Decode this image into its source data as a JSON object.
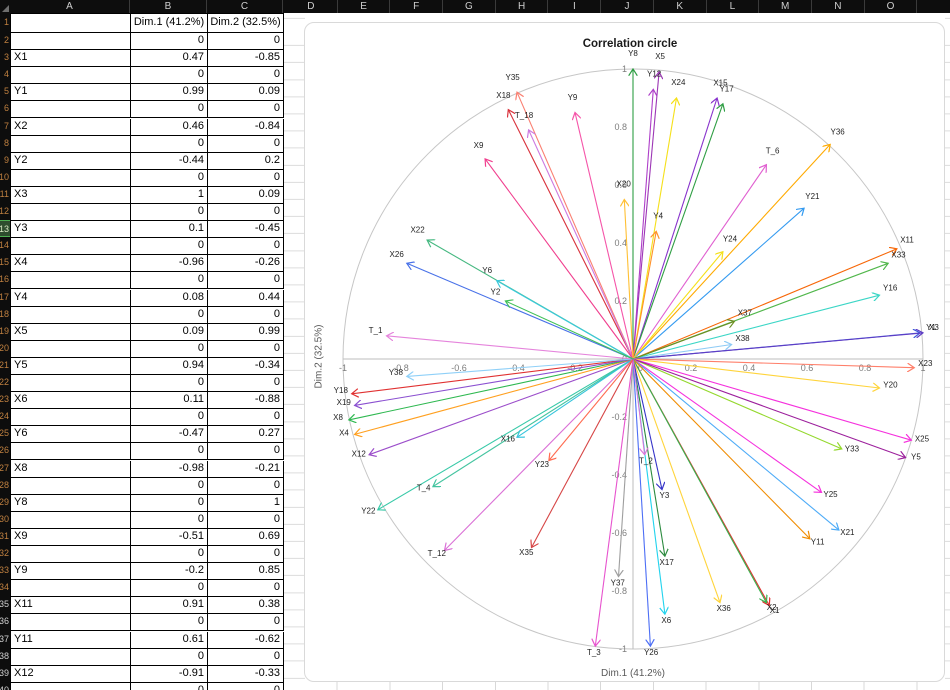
{
  "sheet": {
    "columns": [
      "A",
      "B",
      "C",
      "D",
      "E",
      "F",
      "G",
      "H",
      "I",
      "J",
      "K",
      "L",
      "M",
      "N",
      "O"
    ],
    "selected_row": 13,
    "rows": [
      {
        "n": "1",
        "a": "",
        "b": "Dim.1 (41.2%)",
        "c": "Dim.2 (32.5%)"
      },
      {
        "n": "2",
        "a": "",
        "b": "0",
        "c": "0"
      },
      {
        "n": "3",
        "a": "X1",
        "b": "0.47",
        "c": "-0.85"
      },
      {
        "n": "4",
        "a": "",
        "b": "0",
        "c": "0"
      },
      {
        "n": "5",
        "a": "Y1",
        "b": "0.99",
        "c": "0.09"
      },
      {
        "n": "6",
        "a": "",
        "b": "0",
        "c": "0"
      },
      {
        "n": "7",
        "a": "X2",
        "b": "0.46",
        "c": "-0.84"
      },
      {
        "n": "8",
        "a": "",
        "b": "0",
        "c": "0"
      },
      {
        "n": "9",
        "a": "Y2",
        "b": "-0.44",
        "c": "0.2"
      },
      {
        "n": "10",
        "a": "",
        "b": "0",
        "c": "0"
      },
      {
        "n": "11",
        "a": "X3",
        "b": "1",
        "c": "0.09"
      },
      {
        "n": "12",
        "a": "",
        "b": "0",
        "c": "0"
      },
      {
        "n": "13",
        "a": "Y3",
        "b": "0.1",
        "c": "-0.45"
      },
      {
        "n": "14",
        "a": "",
        "b": "0",
        "c": "0"
      },
      {
        "n": "15",
        "a": "X4",
        "b": "-0.96",
        "c": "-0.26"
      },
      {
        "n": "16",
        "a": "",
        "b": "0",
        "c": "0"
      },
      {
        "n": "17",
        "a": "Y4",
        "b": "0.08",
        "c": "0.44"
      },
      {
        "n": "18",
        "a": "",
        "b": "0",
        "c": "0"
      },
      {
        "n": "19",
        "a": "X5",
        "b": "0.09",
        "c": "0.99"
      },
      {
        "n": "20",
        "a": "",
        "b": "0",
        "c": "0"
      },
      {
        "n": "21",
        "a": "Y5",
        "b": "0.94",
        "c": "-0.34"
      },
      {
        "n": "22",
        "a": "",
        "b": "0",
        "c": "0"
      },
      {
        "n": "23",
        "a": "X6",
        "b": "0.11",
        "c": "-0.88"
      },
      {
        "n": "24",
        "a": "",
        "b": "0",
        "c": "0"
      },
      {
        "n": "25",
        "a": "Y6",
        "b": "-0.47",
        "c": "0.27"
      },
      {
        "n": "26",
        "a": "",
        "b": "0",
        "c": "0"
      },
      {
        "n": "27",
        "a": "X8",
        "b": "-0.98",
        "c": "-0.21"
      },
      {
        "n": "28",
        "a": "",
        "b": "0",
        "c": "0"
      },
      {
        "n": "29",
        "a": "Y8",
        "b": "0",
        "c": "1"
      },
      {
        "n": "30",
        "a": "",
        "b": "0",
        "c": "0"
      },
      {
        "n": "31",
        "a": "X9",
        "b": "-0.51",
        "c": "0.69"
      },
      {
        "n": "32",
        "a": "",
        "b": "0",
        "c": "0"
      },
      {
        "n": "33",
        "a": "Y9",
        "b": "-0.2",
        "c": "0.85"
      },
      {
        "n": "34",
        "a": "",
        "b": "0",
        "c": "0"
      },
      {
        "n": "35",
        "a": "X11",
        "b": "0.91",
        "c": "0.38"
      },
      {
        "n": "36",
        "a": "",
        "b": "0",
        "c": "0"
      },
      {
        "n": "37",
        "a": "Y11",
        "b": "0.61",
        "c": "-0.62"
      },
      {
        "n": "38",
        "a": "",
        "b": "0",
        "c": "0"
      },
      {
        "n": "39",
        "a": "X12",
        "b": "-0.91",
        "c": "-0.33"
      },
      {
        "n": "40",
        "a": "",
        "b": "0",
        "c": "0"
      }
    ]
  },
  "chart_data": {
    "type": "scatter",
    "subtype": "pca-correlation-circle-vectors",
    "title": "Correlation circle",
    "xlabel": "Dim.1 (41.2%)",
    "ylabel": "Dim.2 (32.5%)",
    "xlim": [
      -1,
      1
    ],
    "ylim": [
      -1,
      1
    ],
    "ticks": [
      -1,
      -0.8,
      -0.6,
      -0.4,
      -0.2,
      0,
      0.2,
      0.4,
      0.6,
      0.8,
      1
    ],
    "circle_radius": 1,
    "grid": false,
    "colors": {
      "axis": "#bdbdbd",
      "circle": "#c6c6c6",
      "tick_text": "#7d7d7d",
      "label_text": "#1f1f1f"
    },
    "series": [
      {
        "name": "Y8",
        "x": 0,
        "y": 1,
        "color": "#2f9e44"
      },
      {
        "name": "X5",
        "x": 0.09,
        "y": 0.99,
        "color": "#9c36b5"
      },
      {
        "name": "Y12",
        "x": 0.07,
        "y": 0.93,
        "color": "#ae3ec9"
      },
      {
        "name": "X24",
        "x": 0.15,
        "y": 0.9,
        "color": "#f5e019"
      },
      {
        "name": "X15",
        "x": 0.29,
        "y": 0.9,
        "color": "#8833cc"
      },
      {
        "name": "Y17",
        "x": 0.31,
        "y": 0.88,
        "color": "#2f9e44"
      },
      {
        "name": "Y35",
        "x": -0.4,
        "y": 0.92,
        "color": "#fa8072"
      },
      {
        "name": "X18",
        "x": -0.43,
        "y": 0.86,
        "color": "#d9323c"
      },
      {
        "name": "T_18",
        "x": -0.36,
        "y": 0.79,
        "color": "#cd7ae0"
      },
      {
        "name": "Y9",
        "x": -0.2,
        "y": 0.85,
        "color": "#f554a8"
      },
      {
        "name": "X9",
        "x": -0.51,
        "y": 0.69,
        "color": "#f03e8e"
      },
      {
        "name": "X20",
        "x": -0.03,
        "y": 0.55,
        "color": "#ffc034"
      },
      {
        "name": "Y4",
        "x": 0.08,
        "y": 0.44,
        "color": "#ff922b"
      },
      {
        "name": "Y36",
        "x": 0.68,
        "y": 0.74,
        "color": "#ffaa00"
      },
      {
        "name": "T_6",
        "x": 0.46,
        "y": 0.67,
        "color": "#e05fd0"
      },
      {
        "name": "Y21",
        "x": 0.59,
        "y": 0.52,
        "color": "#339af0"
      },
      {
        "name": "Y24",
        "x": 0.31,
        "y": 0.37,
        "color": "#f5e019"
      },
      {
        "name": "X11",
        "x": 0.91,
        "y": 0.38,
        "color": "#f76707"
      },
      {
        "name": "X33",
        "x": 0.88,
        "y": 0.33,
        "color": "#51b74b"
      },
      {
        "name": "Y16",
        "x": 0.85,
        "y": 0.22,
        "color": "#3bd6c6"
      },
      {
        "name": "X37",
        "x": 0.35,
        "y": 0.13,
        "color": "#6b8e23"
      },
      {
        "name": "X38",
        "x": 0.34,
        "y": 0.05,
        "color": "#8ecbf5"
      },
      {
        "name": "Y1",
        "x": 0.99,
        "y": 0.09,
        "color": "#3b5bdb"
      },
      {
        "name": "X3",
        "x": 1,
        "y": 0.09,
        "color": "#5f3dc4"
      },
      {
        "name": "X23",
        "x": 0.97,
        "y": -0.03,
        "color": "#ff7f6a"
      },
      {
        "name": "Y20",
        "x": 0.85,
        "y": -0.1,
        "color": "#ffd43b"
      },
      {
        "name": "X25",
        "x": 0.96,
        "y": -0.28,
        "color": "#f531dd"
      },
      {
        "name": "Y33",
        "x": 0.72,
        "y": -0.31,
        "color": "#94d82d"
      },
      {
        "name": "Y5",
        "x": 0.94,
        "y": -0.34,
        "color": "#9c1f9c"
      },
      {
        "name": "Y25",
        "x": 0.65,
        "y": -0.46,
        "color": "#f531dd"
      },
      {
        "name": "X21",
        "x": 0.71,
        "y": -0.59,
        "color": "#4dabf7"
      },
      {
        "name": "Y11",
        "x": 0.61,
        "y": -0.62,
        "color": "#f08c00"
      },
      {
        "name": "X1",
        "x": 0.47,
        "y": -0.85,
        "color": "#e03131"
      },
      {
        "name": "X2",
        "x": 0.46,
        "y": -0.84,
        "color": "#37b24d"
      },
      {
        "name": "X36",
        "x": 0.3,
        "y": -0.84,
        "color": "#ffd43b"
      },
      {
        "name": "X17",
        "x": 0.11,
        "y": -0.68,
        "color": "#2b8a3e"
      },
      {
        "name": "X6",
        "x": 0.11,
        "y": -0.88,
        "color": "#22d3ee"
      },
      {
        "name": "Y26",
        "x": 0.06,
        "y": -0.99,
        "color": "#4c6ef5"
      },
      {
        "name": "Y3",
        "x": 0.1,
        "y": -0.45,
        "color": "#3634c8"
      },
      {
        "name": "T_2",
        "x": 0.04,
        "y": -0.33,
        "color": "#da77d8"
      },
      {
        "name": "Y37",
        "x": -0.05,
        "y": -0.75,
        "color": "#9e9e9e"
      },
      {
        "name": "T_3",
        "x": -0.13,
        "y": -0.99,
        "color": "#e753ce"
      },
      {
        "name": "X35",
        "x": -0.35,
        "y": -0.65,
        "color": "#d64545"
      },
      {
        "name": "T_12",
        "x": -0.65,
        "y": -0.66,
        "color": "#da70d6"
      },
      {
        "name": "Y22",
        "x": -0.88,
        "y": -0.52,
        "color": "#38c9a8"
      },
      {
        "name": "T_4",
        "x": -0.69,
        "y": -0.44,
        "color": "#45c4a0"
      },
      {
        "name": "X16",
        "x": -0.4,
        "y": -0.27,
        "color": "#35c4dc"
      },
      {
        "name": "Y23",
        "x": -0.29,
        "y": -0.35,
        "color": "#ff6b50"
      },
      {
        "name": "X12",
        "x": -0.91,
        "y": -0.33,
        "color": "#9b4dca"
      },
      {
        "name": "X4",
        "x": -0.96,
        "y": -0.26,
        "color": "#ffa020"
      },
      {
        "name": "X8",
        "x": -0.98,
        "y": -0.21,
        "color": "#2eb850"
      },
      {
        "name": "Y18",
        "x": -0.97,
        "y": -0.12,
        "color": "#e03131"
      },
      {
        "name": "X19",
        "x": -0.96,
        "y": -0.16,
        "color": "#8a4fd0"
      },
      {
        "name": "Y38",
        "x": -0.78,
        "y": -0.06,
        "color": "#8fd0f8"
      },
      {
        "name": "T_1",
        "x": -0.85,
        "y": 0.08,
        "color": "#e584dc"
      },
      {
        "name": "X22",
        "x": -0.71,
        "y": 0.41,
        "color": "#45b880"
      },
      {
        "name": "X26",
        "x": -0.78,
        "y": 0.33,
        "color": "#4871e8"
      },
      {
        "name": "Y6",
        "x": -0.47,
        "y": 0.27,
        "color": "#3bc9db"
      },
      {
        "name": "Y2",
        "x": -0.44,
        "y": 0.2,
        "color": "#40c057"
      }
    ]
  }
}
